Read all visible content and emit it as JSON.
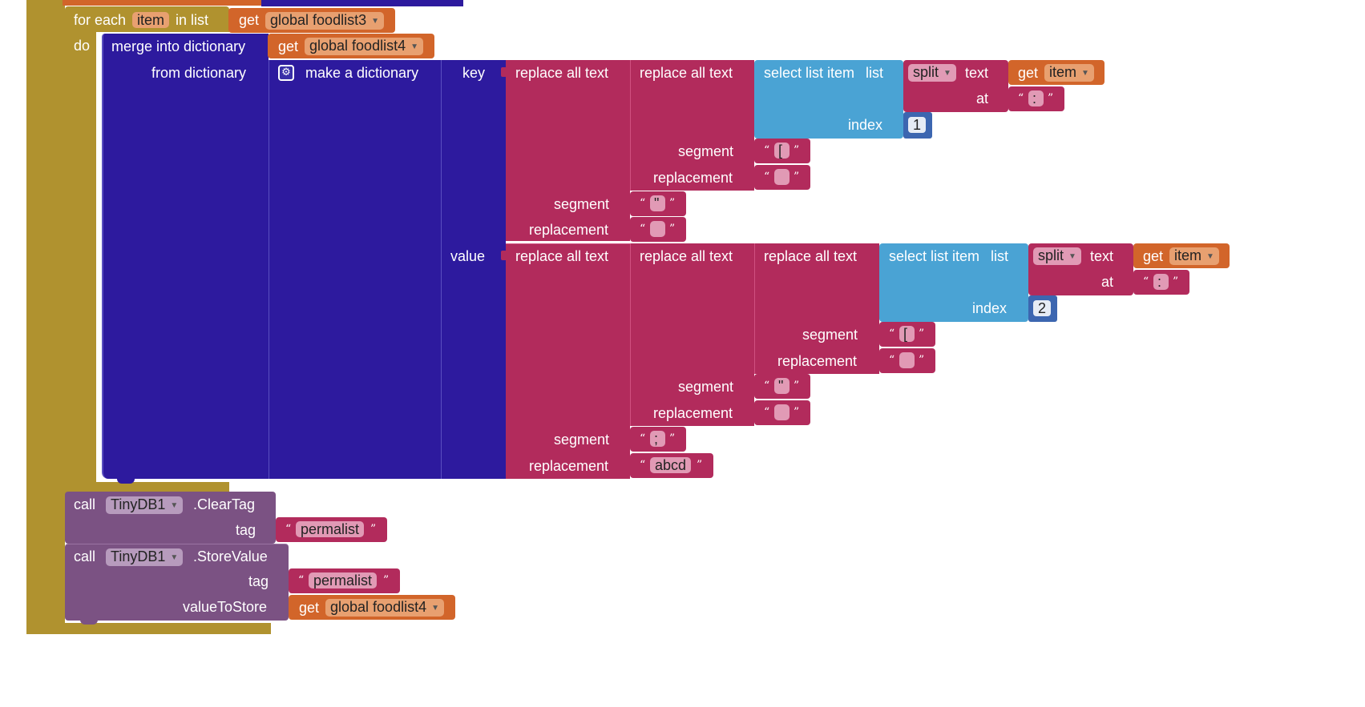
{
  "for_each": {
    "label_for_each": "for each",
    "var_name": "item",
    "label_in_list": "in list",
    "label_do": "do",
    "list_get": {
      "label": "get",
      "var": "global foodlist3"
    }
  },
  "merge": {
    "label": "merge into dictionary",
    "target_get": {
      "label": "get",
      "var": "global foodlist4"
    },
    "from_label": "from dictionary"
  },
  "make_dict": {
    "label": "make a dictionary",
    "gear_icon": "gear-icon",
    "key_label": "key",
    "value_label": "value"
  },
  "key_expr": {
    "outer_replace": {
      "label": "replace all text",
      "segment_label": "segment",
      "segment": "\"",
      "replacement_label": "replacement",
      "replacement": ""
    },
    "inner_replace": {
      "label": "replace all text",
      "segment_label": "segment",
      "segment": "[",
      "replacement_label": "replacement",
      "replacement": ""
    },
    "select": {
      "label": "select list item",
      "list_label": "list",
      "index_label": "index",
      "index": "1"
    },
    "split": {
      "label": "split",
      "text_label": "text",
      "at_label": "at",
      "at": ":"
    },
    "get_item": {
      "label": "get",
      "var": "item"
    }
  },
  "value_expr": {
    "outer_replace": {
      "label": "replace all text",
      "segment_label": "segment",
      "segment": ";",
      "replacement_label": "replacement",
      "replacement": "abcd"
    },
    "middle_replace": {
      "label": "replace all text",
      "segment_label": "segment",
      "segment": "\"",
      "replacement_label": "replacement",
      "replacement": ""
    },
    "inner_replace": {
      "label": "replace all text",
      "segment_label": "segment",
      "segment": "[",
      "replacement_label": "replacement",
      "replacement": ""
    },
    "select": {
      "label": "select list item",
      "list_label": "list",
      "index_label": "index",
      "index": "2"
    },
    "split": {
      "label": "split",
      "text_label": "text",
      "at_label": "at",
      "at": ":"
    },
    "get_item": {
      "label": "get",
      "var": "item"
    }
  },
  "clear_tag": {
    "call_label": "call",
    "component": "TinyDB1",
    "method": ".ClearTag",
    "tag_label": "tag",
    "tag_value": "permalist"
  },
  "store_value": {
    "call_label": "call",
    "component": "TinyDB1",
    "method": ".StoreValue",
    "tag_label": "tag",
    "tag_value": "permalist",
    "value_label": "valueToStore",
    "value_get": {
      "label": "get",
      "var": "global foodlist4"
    }
  },
  "colors": {
    "control": "#b0922f",
    "variable": "#d2652a",
    "dictionary": "#2d1a9e",
    "text": "#b22b5c",
    "list": "#4aa3d4",
    "math": "#3c66b0",
    "procedure_call": "#7b5283"
  }
}
